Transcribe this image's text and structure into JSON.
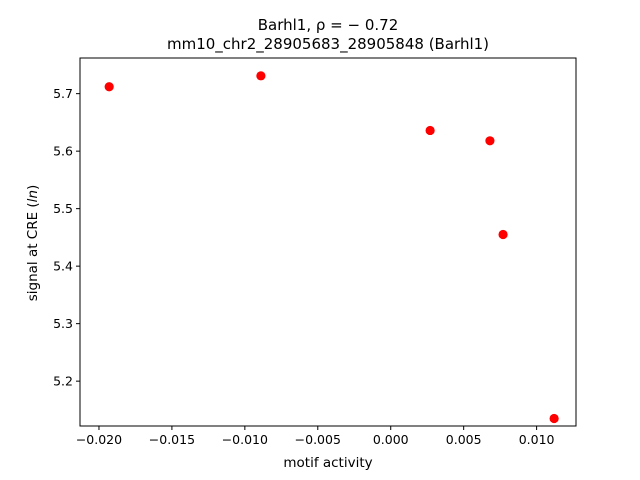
{
  "chart_data": {
    "type": "scatter",
    "title_line1": "Barhl1, ρ = − 0.72",
    "title_line2": "mm10_chr2_28905683_28905848 (Barhl1)",
    "xlabel": "motif activity",
    "ylabel": "signal at CRE (ln)",
    "ylabel_prefix": "signal at CRE (",
    "ylabel_italic": "ln",
    "ylabel_suffix": ")",
    "xlim": [
      -0.0213,
      0.0127
    ],
    "ylim": [
      5.122,
      5.762
    ],
    "xticks": [
      -0.02,
      -0.015,
      -0.01,
      -0.005,
      0.0,
      0.005,
      0.01
    ],
    "xtick_labels": [
      "−0.020",
      "−0.015",
      "−0.010",
      "−0.005",
      "0.000",
      "0.005",
      "0.010"
    ],
    "yticks": [
      5.2,
      5.3,
      5.4,
      5.5,
      5.6,
      5.7
    ],
    "ytick_labels": [
      "5.2",
      "5.3",
      "5.4",
      "5.5",
      "5.6",
      "5.7"
    ],
    "point_color": "#ff0000",
    "points": [
      {
        "x": -0.0193,
        "y": 5.712
      },
      {
        "x": -0.0089,
        "y": 5.731
      },
      {
        "x": 0.0027,
        "y": 5.636
      },
      {
        "x": 0.0068,
        "y": 5.618
      },
      {
        "x": 0.0077,
        "y": 5.455
      },
      {
        "x": 0.0112,
        "y": 5.135
      }
    ],
    "grid": false,
    "legend": "none"
  }
}
